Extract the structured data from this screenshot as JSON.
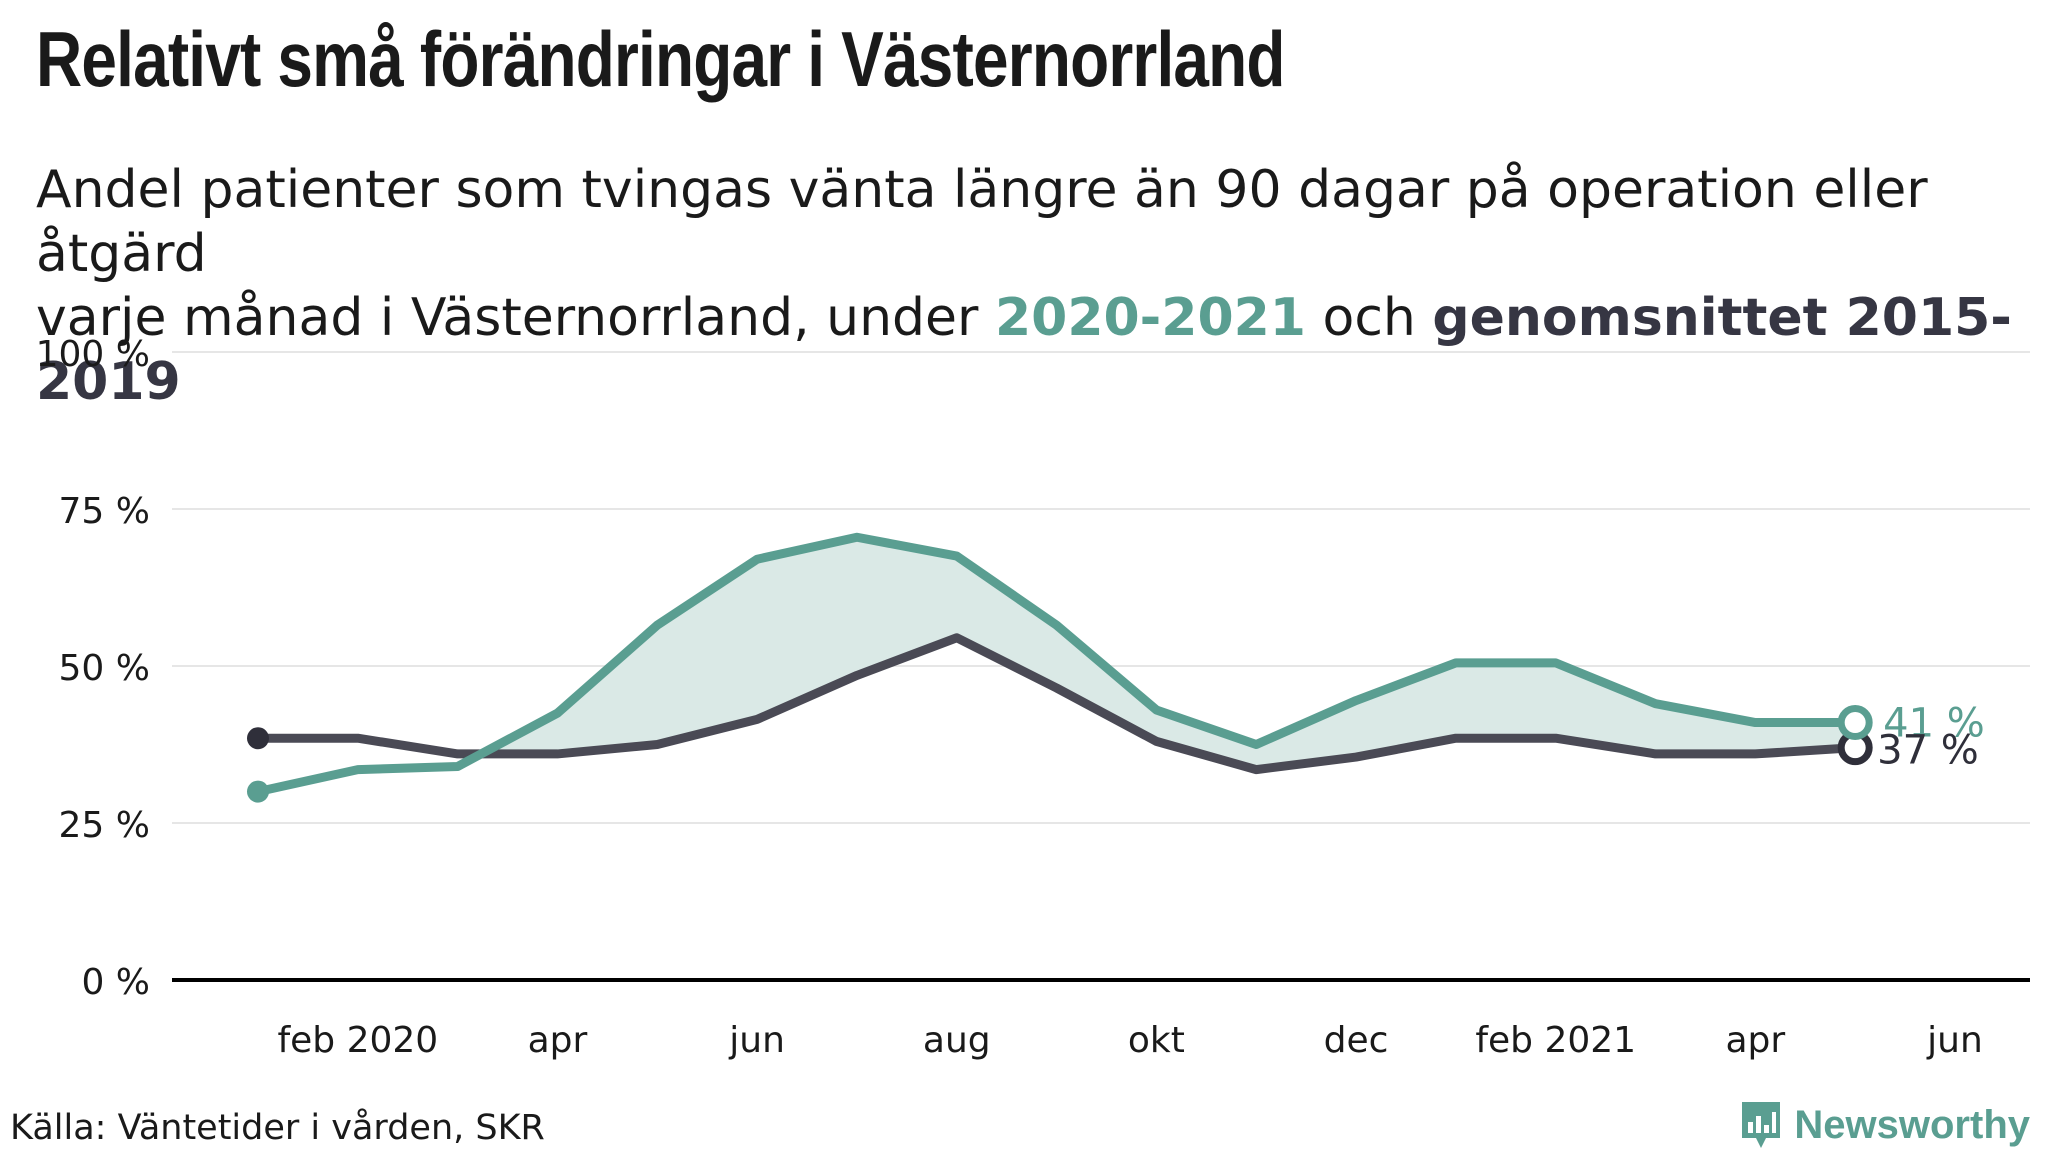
{
  "title": "Relativt små förändringar i Västernorrland",
  "subtitle": {
    "line1": "Andel patienter som tvingas vänta längre än 90 dagar på operation eller åtgärd",
    "line2_prefix": "varje månad i Västernorrland, under ",
    "highlight_current": "2020-2021",
    "line2_middle": " och ",
    "highlight_average": "genomsnittet 2015-2019"
  },
  "source": "Källa: Väntetider i vården, SKR",
  "brand": "Newsworthy",
  "colors": {
    "current": "#5a9e91",
    "average": "#4a4a55",
    "fill": "#dae9e6",
    "grid": "#e6e6e6",
    "axis": "#000000"
  },
  "chart_data": {
    "type": "line",
    "x_start": "2020-01",
    "x_end": "2021-06",
    "months": [
      "2020-01",
      "2020-02",
      "2020-03",
      "2020-04",
      "2020-05",
      "2020-06",
      "2020-07",
      "2020-08",
      "2020-09",
      "2020-10",
      "2020-11",
      "2020-12",
      "2021-01",
      "2021-02",
      "2021-03",
      "2021-04",
      "2021-05"
    ],
    "x_tick_labels": [
      {
        "month": "2020-02",
        "label": "feb 2020"
      },
      {
        "month": "2020-04",
        "label": "apr"
      },
      {
        "month": "2020-06",
        "label": "jun"
      },
      {
        "month": "2020-08",
        "label": "aug"
      },
      {
        "month": "2020-10",
        "label": "okt"
      },
      {
        "month": "2020-12",
        "label": "dec"
      },
      {
        "month": "2021-02",
        "label": "feb 2021"
      },
      {
        "month": "2021-04",
        "label": "apr"
      },
      {
        "month": "2021-06",
        "label": "jun"
      }
    ],
    "y_ticks": [
      0,
      25,
      50,
      75,
      100
    ],
    "y_tick_labels": [
      "0 %",
      "25 %",
      "50 %",
      "75 %",
      "100 %"
    ],
    "ylim": [
      0,
      100
    ],
    "grid": true,
    "series": [
      {
        "key": "current",
        "values": [
          30,
          33.5,
          34,
          42.5,
          56.5,
          67,
          70.5,
          67.5,
          56.5,
          43,
          37.5,
          44.5,
          50.5,
          50.5,
          44,
          41,
          41
        ],
        "end_label": "41 %"
      },
      {
        "key": "average",
        "values": [
          38.5,
          38.5,
          36,
          36,
          37.5,
          41.5,
          48.5,
          54.5,
          46.5,
          38,
          33.5,
          35.5,
          38.5,
          38.5,
          36,
          36,
          37
        ],
        "end_label": "37 %"
      }
    ]
  }
}
